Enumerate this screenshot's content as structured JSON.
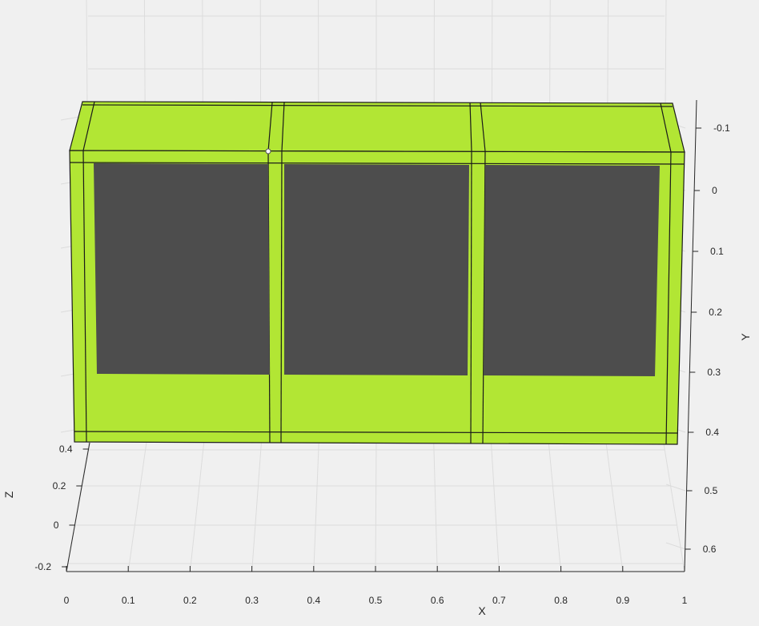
{
  "figure": {
    "background_color": "#f0f0f0",
    "grid_color": "#dcdcdc",
    "axis_line_color": "#262626",
    "face_color": "#b2e634",
    "hole_color": "#4d4d4d",
    "edge_color": "#1a1a1a",
    "marker_color": "#ffffff"
  },
  "axes": {
    "x_label": "X",
    "y_label": "Y",
    "z_label": "Z",
    "x_ticks": [
      "0",
      "0.1",
      "0.2",
      "0.3",
      "0.4",
      "0.5",
      "0.6",
      "0.7",
      "0.8",
      "0.9",
      "1"
    ],
    "y_ticks": [
      "-0.1",
      "0",
      "0.1",
      "0.2",
      "0.3",
      "0.4",
      "0.5",
      "0.6"
    ],
    "z_ticks": [
      "0.4",
      "0.2",
      "0",
      "-0.2"
    ]
  },
  "chart_data": {
    "type": "3d-surface-patch",
    "xlim": [
      0,
      1
    ],
    "ylim": [
      -0.15,
      0.65
    ],
    "zlim": [
      -0.2,
      0.4
    ],
    "grid": true,
    "object": {
      "description_visible": "three rectangular frames with dark gray inner panels",
      "panels": 3
    }
  }
}
